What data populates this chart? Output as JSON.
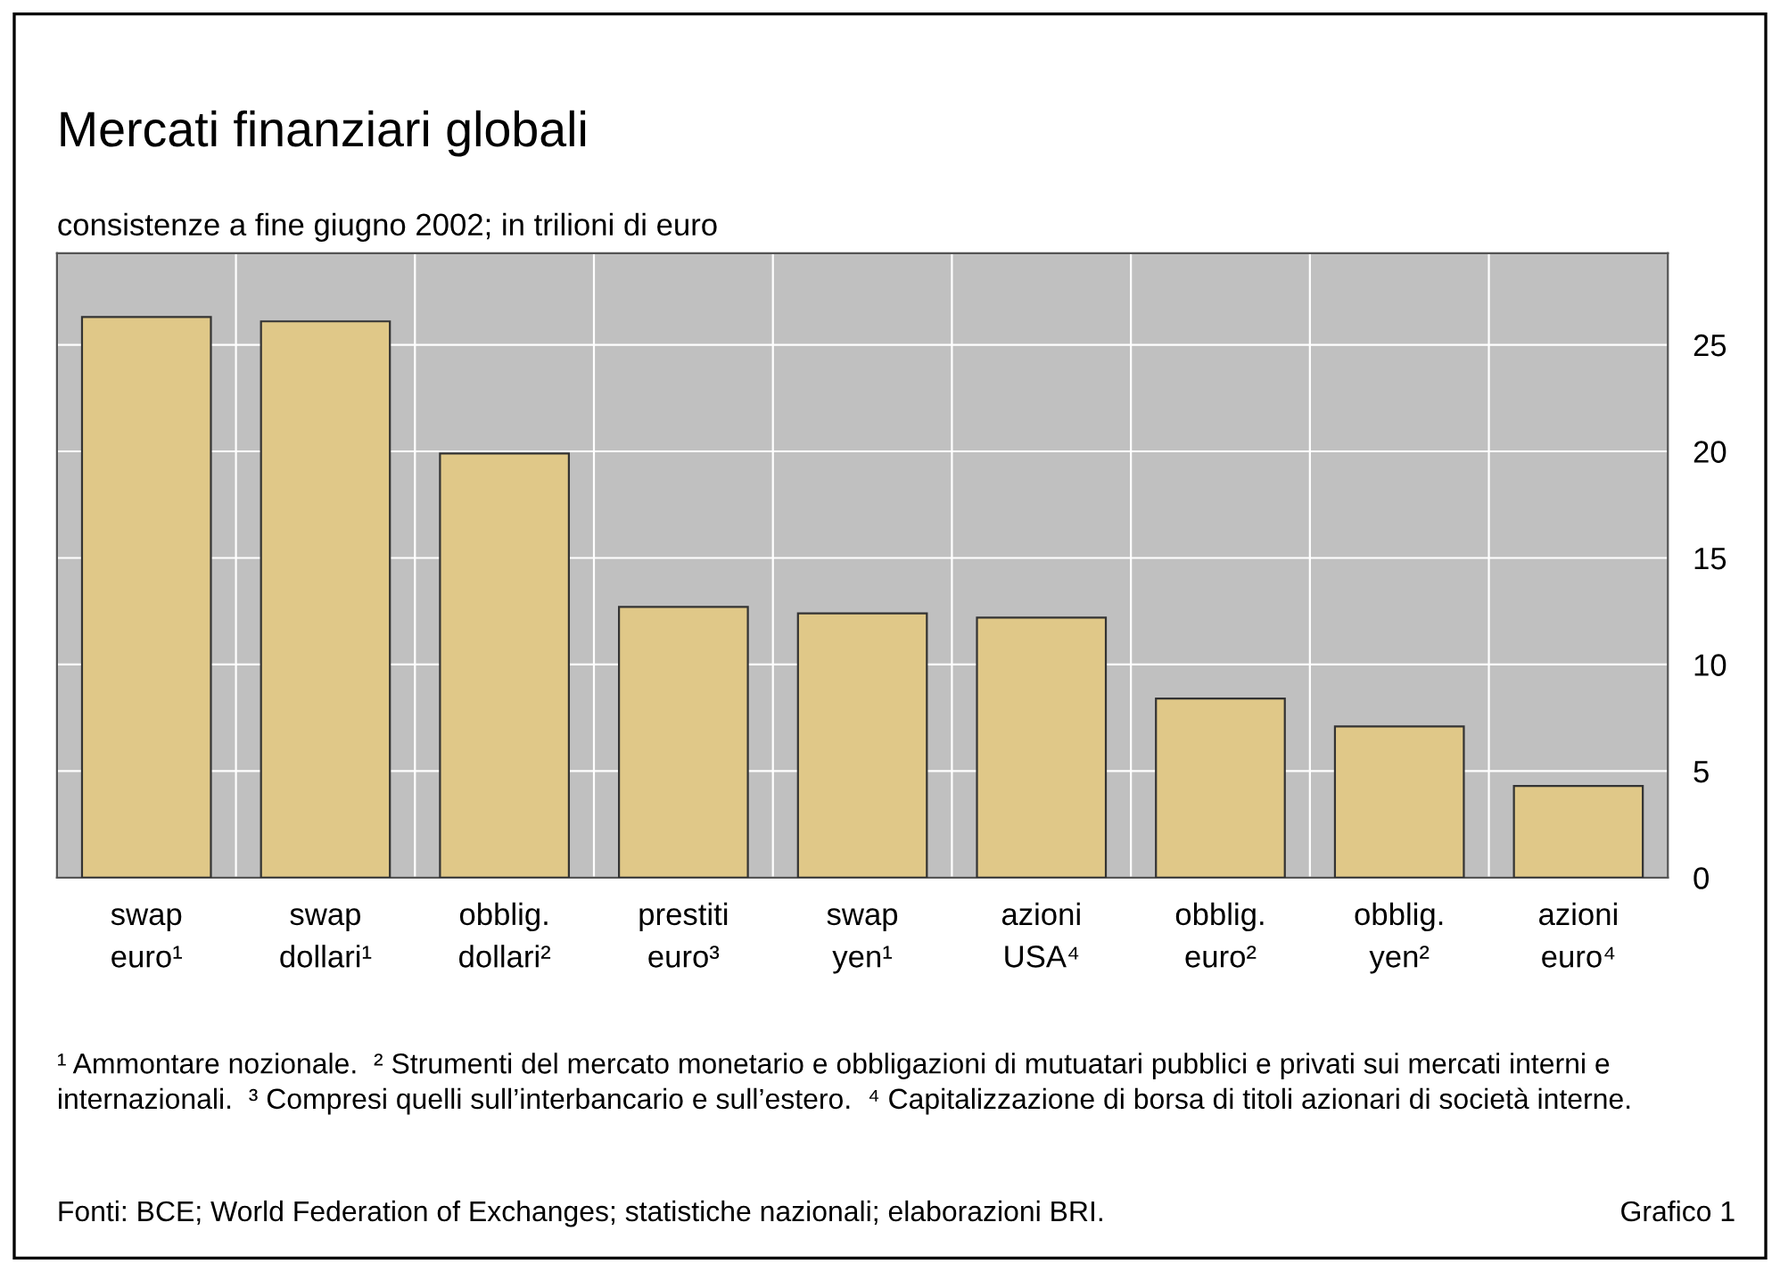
{
  "chart_data": {
    "type": "bar",
    "title": "Mercati finanziari globali",
    "subtitle": "consistenze a fine giugno 2002; in trilioni di euro",
    "categories": [
      "swap\neuro¹",
      "swap\ndollari¹",
      "obblig.\ndollari²",
      "prestiti\neuro³",
      "swap\nyen¹",
      "azioni\nUSA⁴",
      "obblig.\neuro²",
      "obblig.\nyen²",
      "azioni\neuro⁴"
    ],
    "values": [
      26.3,
      26.1,
      19.9,
      12.7,
      12.4,
      12.2,
      8.4,
      7.1,
      4.3
    ],
    "color": "#e0c888",
    "ylim": [
      0,
      29.3
    ],
    "yticks": [
      0,
      5,
      10,
      15,
      20,
      25
    ],
    "grid": true,
    "annotations": [
      "¹ Ammontare nozionale.  ² Strumenti del mercato monetario e obbligazioni di mutuatari pubblici e privati sui mercati interni e internazionali.  ³ Compresi quelli sull’interbancario e sull’estero.  ⁴ Capitalizzazione di borsa di titoli azionari di società interne.",
      "Fonti: BCE; World Federation of Exchanges; statistiche nazionali; elaborazioni BRI.",
      "Grafico 1"
    ]
  }
}
